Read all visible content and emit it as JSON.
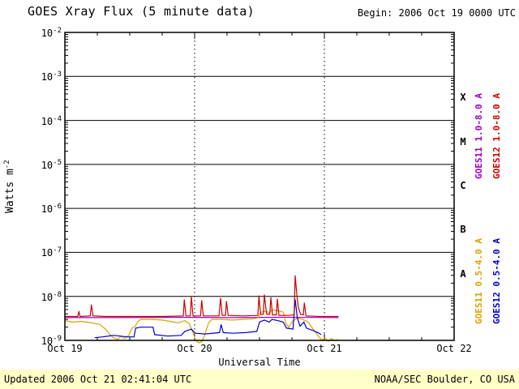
{
  "header": {
    "title": "GOES Xray Flux (5 minute data)",
    "begin_label": "Begin: 2006 Oct 19 0000 UTC"
  },
  "footer": {
    "updated": "Updated 2006 Oct 21 02:41:04 UTC",
    "source": "NOAA/SEC Boulder, CO USA"
  },
  "colors": {
    "footer_background": "#ffffc8",
    "frame": "#000000"
  },
  "chart_data": {
    "type": "line",
    "title": "GOES Xray Flux (5 minute data)",
    "xlabel": "Universal Time",
    "ylabel_base": "Watts m",
    "ylabel_exp": "-2",
    "x_ticks": [
      "Oct 19",
      "Oct 20",
      "Oct 21",
      "Oct 22"
    ],
    "x_range_hours": [
      0,
      72
    ],
    "day_lines_hours": [
      24,
      48
    ],
    "y_exponents": [
      -2,
      -3,
      -4,
      -5,
      -6,
      -7,
      -8,
      -9
    ],
    "ylim": [
      1e-09,
      0.01
    ],
    "grid": "solid horizontal per decade, dotted vertical per day",
    "flare_classes": [
      {
        "label": "X",
        "exp_top": -3,
        "exp_bottom": -4
      },
      {
        "label": "M",
        "exp_top": -4,
        "exp_bottom": -5
      },
      {
        "label": "C",
        "exp_top": -5,
        "exp_bottom": -6
      },
      {
        "label": "B",
        "exp_top": -6,
        "exp_bottom": -7
      },
      {
        "label": "A",
        "exp_top": -7,
        "exp_bottom": -8
      }
    ],
    "series": [
      {
        "name": "GOES11 1.0-8.0 A",
        "color": "#9900cc",
        "legend_col": 0,
        "legend_row": 0,
        "points": [
          [
            0,
            3.3e-09
          ],
          [
            10,
            3.3e-09
          ],
          [
            20,
            3.35e-09
          ],
          [
            30,
            3.3e-09
          ],
          [
            40,
            3.35e-09
          ],
          [
            50.6,
            3.3e-09
          ]
        ]
      },
      {
        "name": "GOES11 0.5-4.0 A",
        "color": "#dda000",
        "legend_col": 0,
        "legend_row": 1,
        "points": [
          [
            0,
            2.8e-09
          ],
          [
            1.5,
            2.6e-09
          ],
          [
            3,
            2.7e-09
          ],
          [
            5,
            2.5e-09
          ],
          [
            6.5,
            2.3e-09
          ],
          [
            7.5,
            1.8e-09
          ],
          [
            8.2,
            1.4e-09
          ],
          [
            9,
            1.15e-09
          ],
          [
            9.8,
            1.05e-09
          ],
          [
            10.4,
            1.25e-09
          ],
          [
            11,
            1.1e-09
          ],
          [
            11.8,
            1.3e-09
          ],
          [
            12.4,
            1.9e-09
          ],
          [
            13,
            2.1e-09
          ],
          [
            13.5,
            2.7e-09
          ],
          [
            14,
            3e-09
          ],
          [
            16,
            3e-09
          ],
          [
            18,
            2.9e-09
          ],
          [
            19.5,
            2.7e-09
          ],
          [
            21,
            2.5e-09
          ],
          [
            22.2,
            2.8e-09
          ],
          [
            23,
            2.4e-09
          ],
          [
            23.7,
            1.5e-09
          ],
          [
            24.2,
            1e-09
          ],
          [
            24.8,
            8.8e-10
          ],
          [
            25.4,
            9.5e-10
          ],
          [
            26,
            1.5e-09
          ],
          [
            26.6,
            2.5e-09
          ],
          [
            27.2,
            3e-09
          ],
          [
            29,
            3e-09
          ],
          [
            31,
            2.9e-09
          ],
          [
            33,
            3e-09
          ],
          [
            35,
            3.1e-09
          ],
          [
            35.8,
            3.3e-09
          ],
          [
            36.2,
            4.3e-09
          ],
          [
            37,
            4.6e-09
          ],
          [
            37.8,
            4.3e-09
          ],
          [
            38.4,
            5e-09
          ],
          [
            39.4,
            4.7e-09
          ],
          [
            40.4,
            4.4e-09
          ],
          [
            40.9,
            2.4e-09
          ],
          [
            41.4,
            2e-09
          ],
          [
            42.2,
            2.8e-09
          ],
          [
            43,
            3.2e-09
          ],
          [
            44,
            3e-09
          ],
          [
            45,
            2.6e-09
          ],
          [
            45.8,
            1.9e-09
          ],
          [
            46.4,
            1.5e-09
          ],
          [
            47,
            1.2e-09
          ],
          [
            47.6,
            1e-09
          ],
          [
            48.1,
            1.15e-09
          ],
          [
            48.7,
            9.5e-10
          ],
          [
            49.3,
            1.1e-09
          ],
          [
            49.9,
            9.8e-10
          ],
          [
            50.6,
            1.05e-09
          ]
        ]
      },
      {
        "name": "GOES12 0.5-4.0 A",
        "color": "#0000cc",
        "legend_col": 1,
        "legend_row": 1,
        "points": [
          [
            5.5,
            1.15e-09
          ],
          [
            7,
            1.2e-09
          ],
          [
            9,
            1.3e-09
          ],
          [
            11.5,
            1.2e-09
          ],
          [
            12.8,
            1.2e-09
          ],
          [
            13.1,
            1.9e-09
          ],
          [
            14,
            2e-09
          ],
          [
            16.3,
            2e-09
          ],
          [
            16.6,
            1.35e-09
          ],
          [
            19,
            1.25e-09
          ],
          [
            21.5,
            1.3e-09
          ],
          [
            22.2,
            1.6e-09
          ],
          [
            23.4,
            1.8e-09
          ],
          [
            24.1,
            1.45e-09
          ],
          [
            26,
            1.4e-09
          ],
          [
            28.6,
            1.5e-09
          ],
          [
            28.9,
            2.3e-09
          ],
          [
            29.3,
            1.5e-09
          ],
          [
            31,
            1.45e-09
          ],
          [
            33.5,
            1.5e-09
          ],
          [
            35.5,
            1.6e-09
          ],
          [
            36,
            2.6e-09
          ],
          [
            36.9,
            2.9e-09
          ],
          [
            37.8,
            2.6e-09
          ],
          [
            38.3,
            3e-09
          ],
          [
            39.5,
            2.8e-09
          ],
          [
            40.4,
            2.6e-09
          ],
          [
            41,
            1.9e-09
          ],
          [
            42.2,
            1.8e-09
          ],
          [
            42.6,
            8.5e-09
          ],
          [
            43.0,
            3.2e-09
          ],
          [
            43.5,
            2.1e-09
          ],
          [
            44.2,
            2.6e-09
          ],
          [
            44.7,
            1.9e-09
          ],
          [
            45.8,
            1.7e-09
          ],
          [
            46.8,
            1.5e-09
          ],
          [
            47.4,
            1.35e-09
          ]
        ]
      },
      {
        "name": "GOES12 1.0-8.0 A",
        "color": "#cc0000",
        "legend_col": 1,
        "legend_row": 0,
        "points": [
          [
            0,
            3.5e-09
          ],
          [
            2.4,
            3.5e-09
          ],
          [
            2.6,
            4.6e-09
          ],
          [
            2.8,
            3.5e-09
          ],
          [
            4.7,
            3.6e-09
          ],
          [
            4.9,
            6.5e-09
          ],
          [
            5.2,
            3.6e-09
          ],
          [
            7.5,
            3.5e-09
          ],
          [
            12,
            3.5e-09
          ],
          [
            18,
            3.5e-09
          ],
          [
            21.9,
            3.6e-09
          ],
          [
            22.1,
            8.5e-09
          ],
          [
            22.4,
            3.6e-09
          ],
          [
            23.2,
            3.6e-09
          ],
          [
            23.4,
            1e-08
          ],
          [
            23.7,
            3.6e-09
          ],
          [
            25.1,
            3.6e-09
          ],
          [
            25.3,
            8.2e-09
          ],
          [
            25.6,
            3.6e-09
          ],
          [
            28.5,
            3.6e-09
          ],
          [
            28.8,
            9.2e-09
          ],
          [
            29.1,
            3.7e-09
          ],
          [
            29.7,
            3.7e-09
          ],
          [
            29.9,
            7.8e-09
          ],
          [
            30.2,
            3.7e-09
          ],
          [
            33,
            3.6e-09
          ],
          [
            35.7,
            3.7e-09
          ],
          [
            35.9,
            1.05e-08
          ],
          [
            36.2,
            3.9e-09
          ],
          [
            36.7,
            3.9e-09
          ],
          [
            36.9,
            1.1e-08
          ],
          [
            37.3,
            4e-09
          ],
          [
            37.9,
            3.9e-09
          ],
          [
            38.1,
            9.5e-09
          ],
          [
            38.4,
            3.8e-09
          ],
          [
            39.1,
            3.8e-09
          ],
          [
            39.3,
            8.8e-09
          ],
          [
            39.6,
            3.7e-09
          ],
          [
            41.5,
            3.7e-09
          ],
          [
            42.4,
            3.8e-09
          ],
          [
            42.6,
            3e-08
          ],
          [
            42.9,
            1.1e-08
          ],
          [
            43.2,
            5.5e-09
          ],
          [
            43.6,
            3.9e-09
          ],
          [
            44.1,
            3.8e-09
          ],
          [
            44.3,
            7.2e-09
          ],
          [
            44.6,
            3.6e-09
          ],
          [
            47,
            3.5e-09
          ],
          [
            50.6,
            3.5e-09
          ]
        ]
      }
    ]
  }
}
